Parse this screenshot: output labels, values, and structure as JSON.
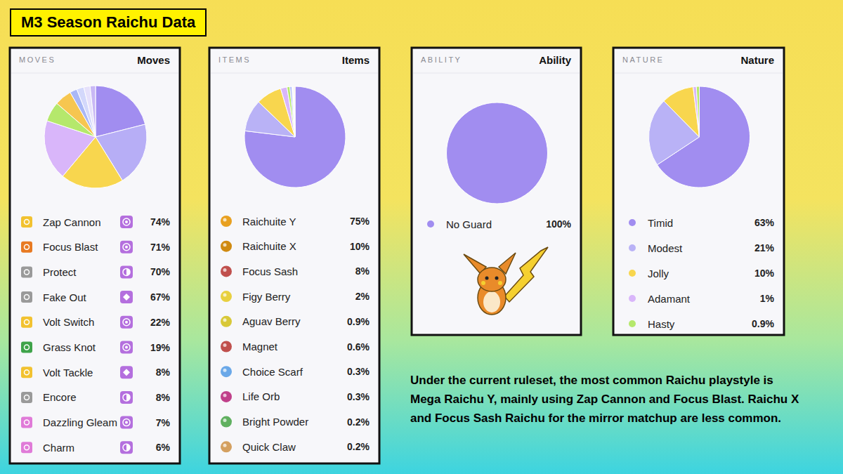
{
  "header": {
    "title": "M3 Season Raichu Data"
  },
  "chart_data": [
    {
      "type": "pie",
      "subtitle": "MOVES",
      "title": "Moves",
      "categories": [
        "Zap Cannon",
        "Focus Blast",
        "Protect",
        "Fake Out",
        "Volt Switch",
        "Grass Knot",
        "Volt Tackle",
        "Encore",
        "Dazzling Gleam",
        "Charm"
      ],
      "values": [
        74,
        71,
        70,
        67,
        22,
        19,
        8,
        8,
        7,
        6
      ],
      "value_labels": [
        "74%",
        "71%",
        "70%",
        "67%",
        "22%",
        "19%",
        "8%",
        "8%",
        "7%",
        "6%"
      ],
      "colors": [
        "#a18df0",
        "#b7aef6",
        "#f8d64e",
        "#d9b6fa",
        "#b5e86c",
        "#f6c650",
        "#a9b7f6",
        "#d3d8fb",
        "#e6e1fb",
        "#c9b8f5"
      ]
    },
    {
      "type": "pie",
      "subtitle": "ITEMS",
      "title": "Items",
      "categories": [
        "Raichuite Y",
        "Raichuite X",
        "Focus Sash",
        "Figy Berry",
        "Aguav Berry",
        "Magnet",
        "Choice Scarf",
        "Life Orb",
        "Bright Powder",
        "Quick Claw"
      ],
      "values": [
        75,
        10,
        8,
        2,
        0.9,
        0.6,
        0.3,
        0.3,
        0.2,
        0.2
      ],
      "value_labels": [
        "75%",
        "10%",
        "8%",
        "2%",
        "0.9%",
        "0.6%",
        "0.3%",
        "0.3%",
        "0.2%",
        "0.2%"
      ],
      "colors": [
        "#a18df0",
        "#b9b2f6",
        "#f8d64e",
        "#d9b6fa",
        "#b5e86c",
        "#a9b7f6",
        "#d3d8fb",
        "#e6e1fb",
        "#c9b8f5",
        "#f6c650"
      ]
    },
    {
      "type": "pie",
      "subtitle": "ABILITY",
      "title": "Ability",
      "categories": [
        "No Guard"
      ],
      "values": [
        100
      ],
      "value_labels": [
        "100%"
      ],
      "colors": [
        "#a18df0"
      ]
    },
    {
      "type": "pie",
      "subtitle": "NATURE",
      "title": "Nature",
      "categories": [
        "Timid",
        "Modest",
        "Jolly",
        "Adamant",
        "Hasty"
      ],
      "values": [
        63,
        21,
        10,
        1,
        0.9
      ],
      "value_labels": [
        "63%",
        "21%",
        "10%",
        "1%",
        "0.9%"
      ],
      "colors": [
        "#a18df0",
        "#b9b2f6",
        "#f8d64e",
        "#d9b6fa",
        "#b5e86c"
      ]
    }
  ],
  "annotation": "Under the current ruleset, the most common Raichu playstyle is Mega Raichu Y, mainly using Zap Cannon and Focus Blast. Raichu X and Focus Sash Raichu for the mirror matchup are less common."
}
